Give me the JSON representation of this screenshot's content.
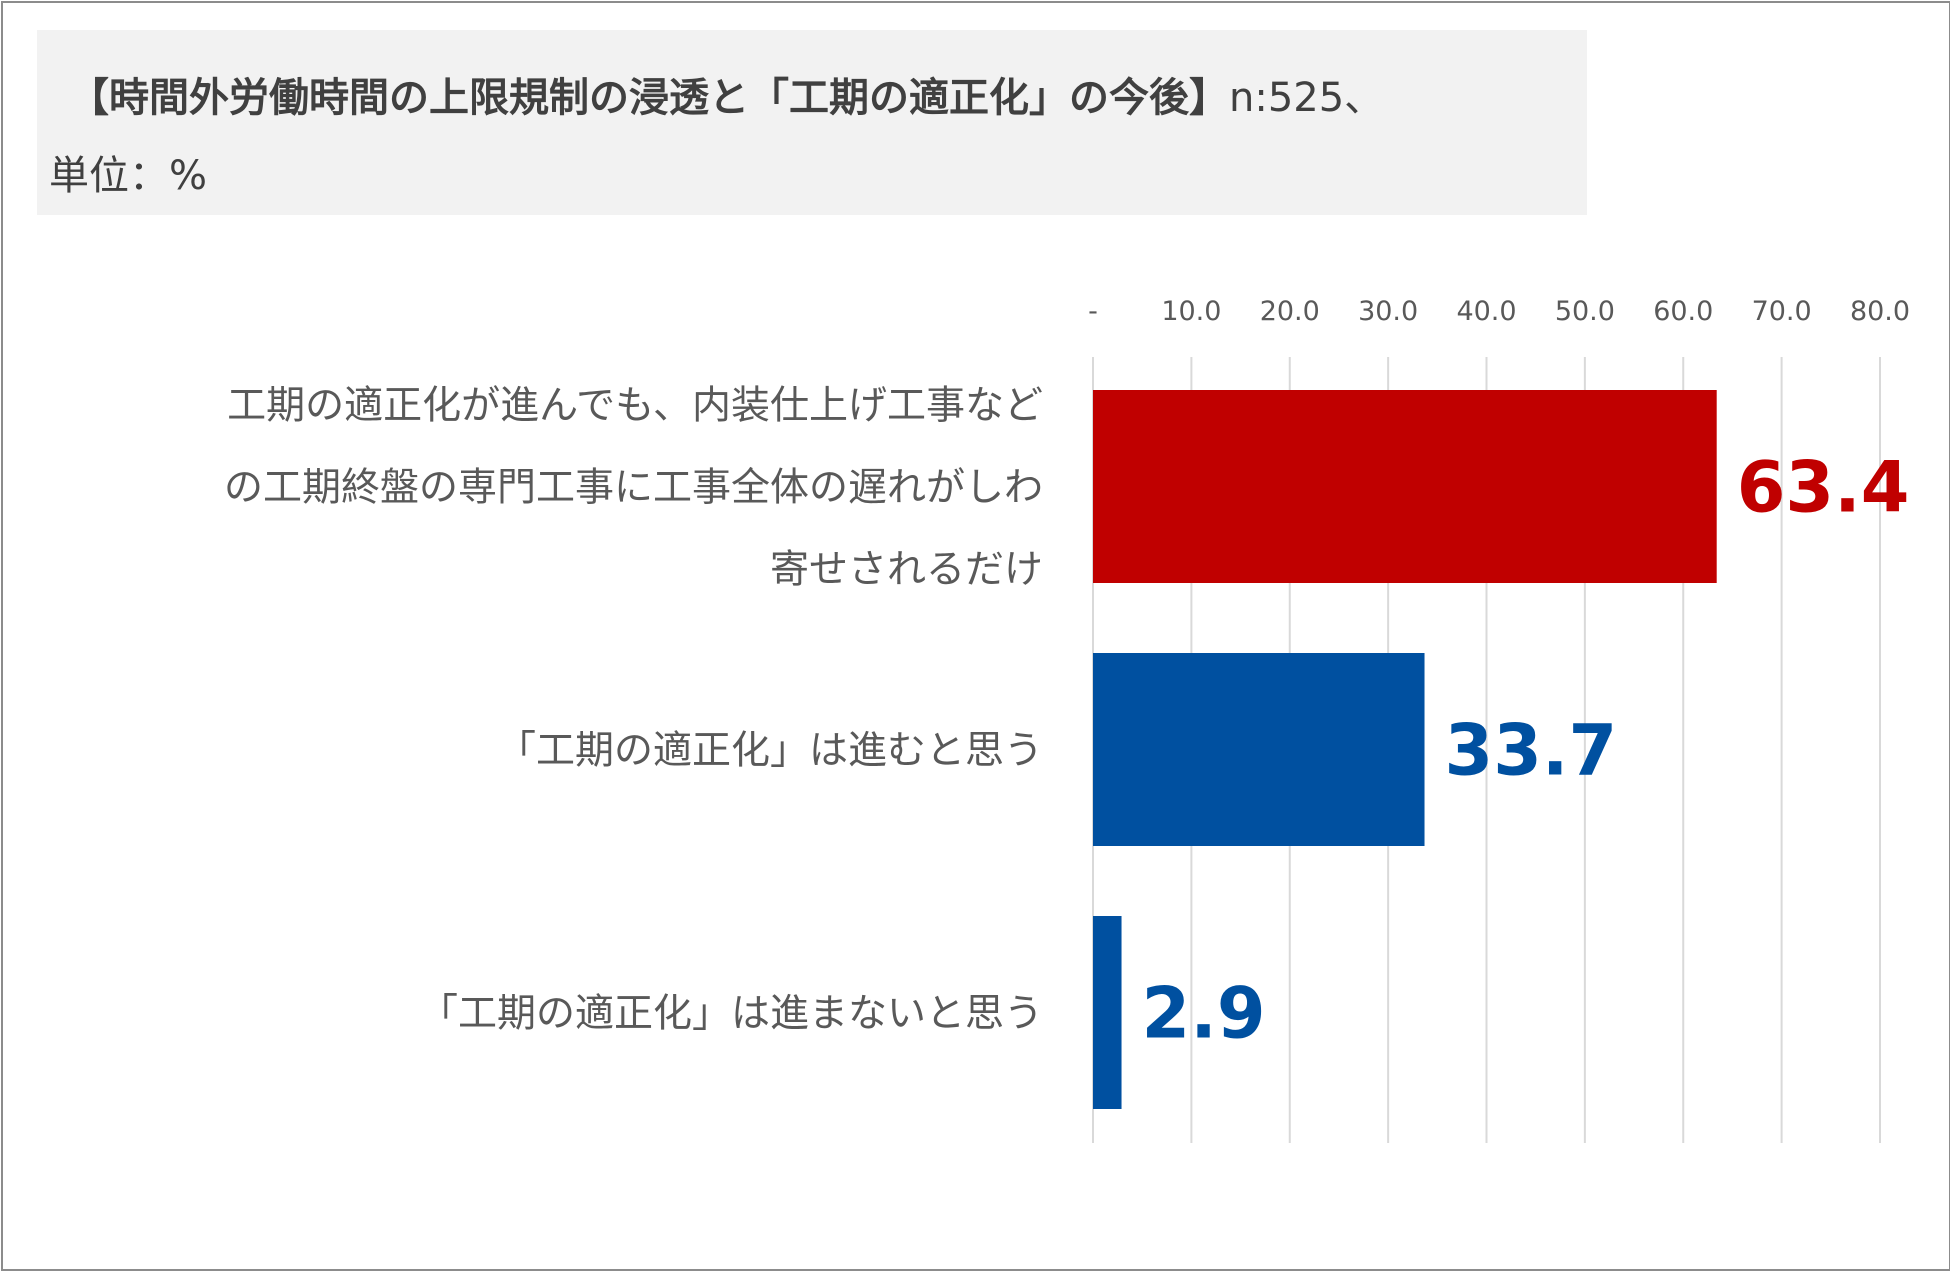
{
  "title": {
    "bold_part": "【時間外労働時間の上限規制の浸透と「工期の適正化」の今後】",
    "normal_part": "n:525、",
    "line2": "単位：%"
  },
  "colors": {
    "red": "#c00000",
    "blue": "#0050a0",
    "grid": "#d9d9d9",
    "axis_text": "#595959",
    "title_bg": "#f2f2f2"
  },
  "chart_data": {
    "type": "bar",
    "orientation": "horizontal",
    "xlim": [
      0,
      80
    ],
    "ticks": [
      0,
      10,
      20,
      30,
      40,
      50,
      60,
      70,
      80
    ],
    "tick_labels": [
      "-",
      "10.0",
      "20.0",
      "30.0",
      "40.0",
      "50.0",
      "60.0",
      "70.0",
      "80.0"
    ],
    "axis_position": "top",
    "grid": true,
    "categories": [
      {
        "label_lines": [
          "工期の適正化が進んでも、内装仕上げ工事など",
          "の工期終盤の専門工事に工事全体の遅れがしわ",
          "寄せされるだけ"
        ],
        "value": 63.4,
        "value_label": "63.4",
        "color": "#c00000"
      },
      {
        "label_lines": [
          "「工期の適正化」は進むと思う"
        ],
        "value": 33.7,
        "value_label": "33.7",
        "color": "#0050a0"
      },
      {
        "label_lines": [
          "「工期の適正化」は進まないと思う"
        ],
        "value": 2.9,
        "value_label": "2.9",
        "color": "#0050a0"
      }
    ]
  }
}
